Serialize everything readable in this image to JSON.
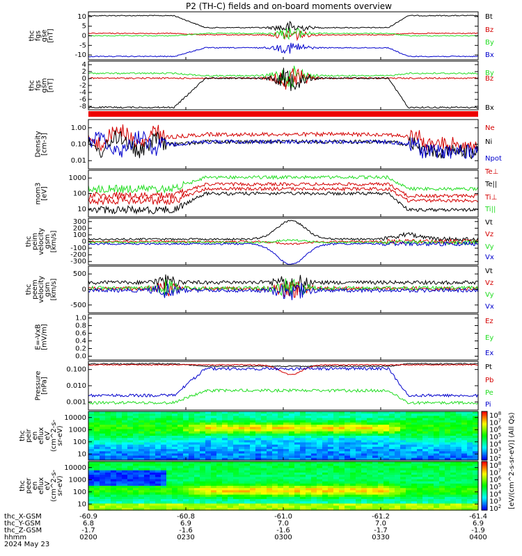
{
  "title": "P2 (TH-C) fields and on-board moments overview",
  "colors": {
    "black": "#000000",
    "red": "#d40000",
    "green": "#22dd22",
    "blue": "#0000cc",
    "bar": "#ee0000"
  },
  "chart_data": [
    {
      "id": "fgs",
      "type": "line",
      "ylabel": [
        "thc",
        "fgs",
        "gse",
        "[nT]"
      ],
      "yticks": [
        "10",
        "5",
        "0",
        "-5",
        "-10"
      ],
      "ylim": [
        -13,
        13
      ],
      "series": [
        {
          "name": "Bt",
          "color": "black"
        },
        {
          "name": "Bz",
          "color": "red"
        },
        {
          "name": "By",
          "color": "green"
        },
        {
          "name": "Bx",
          "color": "blue"
        }
      ]
    },
    {
      "id": "fgs_gsm",
      "type": "line",
      "ylabel": [
        "thc",
        "fgs",
        "gsm",
        "[nT]"
      ],
      "yticks": [
        "4",
        "2",
        "0",
        "-2",
        "-4",
        "-6",
        "-8"
      ],
      "ylim": [
        -9,
        4.5
      ],
      "series": [
        {
          "name": "By",
          "color": "green"
        },
        {
          "name": "Bz",
          "color": "red"
        },
        {
          "name": "Bx",
          "color": "black"
        }
      ]
    },
    {
      "id": "density",
      "type": "line",
      "scale": "log",
      "ylabel": [
        "Density",
        "[cm-3]"
      ],
      "yticks": [
        "1.00",
        "0.10",
        "0.01"
      ],
      "series": [
        {
          "name": "Ne",
          "color": "red"
        },
        {
          "name": "Ni",
          "color": "black"
        },
        {
          "name": "Npot",
          "color": "blue"
        }
      ]
    },
    {
      "id": "temp",
      "type": "line",
      "scale": "log",
      "ylabel": [
        "mom3",
        "[eV]"
      ],
      "yticks": [
        "1000",
        "100",
        "10"
      ],
      "series": [
        {
          "name": "Te⊥",
          "color": "red"
        },
        {
          "name": "Te||",
          "color": "black"
        },
        {
          "name": "Ti⊥",
          "color": "red"
        },
        {
          "name": "Ti||",
          "color": "green"
        }
      ]
    },
    {
      "id": "peim",
      "type": "line",
      "ylabel": [
        "thc",
        "peim",
        "velocity",
        "gsm",
        "[km/s]"
      ],
      "yticks": [
        "300",
        "200",
        "100",
        "0",
        "-100",
        "-200",
        "-300"
      ],
      "ylim": [
        -330,
        330
      ],
      "series": [
        {
          "name": "Vt",
          "color": "black"
        },
        {
          "name": "Vz",
          "color": "red"
        },
        {
          "name": "Vy",
          "color": "green"
        },
        {
          "name": "Vx",
          "color": "blue"
        }
      ]
    },
    {
      "id": "peem",
      "type": "line",
      "ylabel": [
        "thc",
        "peem",
        "velocity",
        "gsm",
        "[km/s]"
      ],
      "yticks": [
        "500",
        "0",
        "-500"
      ],
      "ylim": [
        -700,
        700
      ],
      "series": [
        {
          "name": "Vt",
          "color": "black"
        },
        {
          "name": "Vz",
          "color": "red"
        },
        {
          "name": "Vy",
          "color": "green"
        },
        {
          "name": "Vx",
          "color": "blue"
        }
      ]
    },
    {
      "id": "efield",
      "type": "line",
      "ylabel": [
        "E=-VxB",
        "[mV/m]"
      ],
      "yticks": [
        "1.0",
        "0.8",
        "0.6",
        "0.4",
        "0.2",
        "0.0"
      ],
      "ylim": [
        0,
        1
      ],
      "series": [
        {
          "name": "Ez",
          "color": "red"
        },
        {
          "name": "Ey",
          "color": "green"
        },
        {
          "name": "Ex",
          "color": "blue"
        }
      ]
    },
    {
      "id": "pressure",
      "type": "line",
      "scale": "log",
      "ylabel": [
        "Pressure",
        "[nPa]"
      ],
      "yticks": [
        "0.100",
        "0.010",
        "0.001"
      ],
      "series": [
        {
          "name": "Pt",
          "color": "black"
        },
        {
          "name": "Pb",
          "color": "red"
        },
        {
          "name": "Pe",
          "color": "green"
        },
        {
          "name": "Pi",
          "color": "blue"
        }
      ]
    },
    {
      "id": "peir",
      "type": "heatmap",
      "ylabel": [
        "thc",
        "peir",
        "en",
        "eflux",
        "eV",
        "(cm^2-s-",
        "sr-eV)"
      ],
      "yticks": [
        "10000",
        "1000",
        "100",
        "10"
      ]
    },
    {
      "id": "peer",
      "type": "heatmap",
      "ylabel": [
        "thc",
        "peer",
        "en",
        "eflux",
        "eV",
        "(cm^2-s-",
        "sr-eV)"
      ],
      "yticks": [
        "10000",
        "1000",
        "100",
        "10"
      ]
    }
  ],
  "colorbar": {
    "label": "[eV/(cm^2-s-sr-eV)] (All Qs)",
    "upper": [
      "10",
      "10",
      "10",
      "10",
      "10",
      "10",
      "10"
    ],
    "upper_exp": [
      "8",
      "7",
      "6",
      "5",
      "4",
      "3",
      "2"
    ],
    "lower": [
      "10",
      "10",
      "10",
      "10",
      "10",
      "10",
      "10"
    ],
    "lower_exp": [
      "8",
      "7",
      "6",
      "5",
      "4",
      "3",
      "2"
    ]
  },
  "xaxis": {
    "row_labels": [
      "thc_X-GSM",
      "thc_Y-GSM",
      "thc_Z-GSM",
      "hhmm",
      "2024 May 23"
    ],
    "ticks": [
      {
        "x_gsm": "-60.9",
        "y_gsm": "6.8",
        "z_gsm": "-1.7",
        "hhmm": "0200"
      },
      {
        "x_gsm": "-60.8",
        "y_gsm": "6.9",
        "z_gsm": "-1.6",
        "hhmm": "0230"
      },
      {
        "x_gsm": "-61.0",
        "y_gsm": "7.0",
        "z_gsm": "-1.6",
        "hhmm": "0300"
      },
      {
        "x_gsm": "-61.2",
        "y_gsm": "7.0",
        "z_gsm": "-1.7",
        "hhmm": "0330"
      },
      {
        "x_gsm": "-61.4",
        "y_gsm": "6.9",
        "z_gsm": "-1.9",
        "hhmm": "0400"
      }
    ]
  }
}
